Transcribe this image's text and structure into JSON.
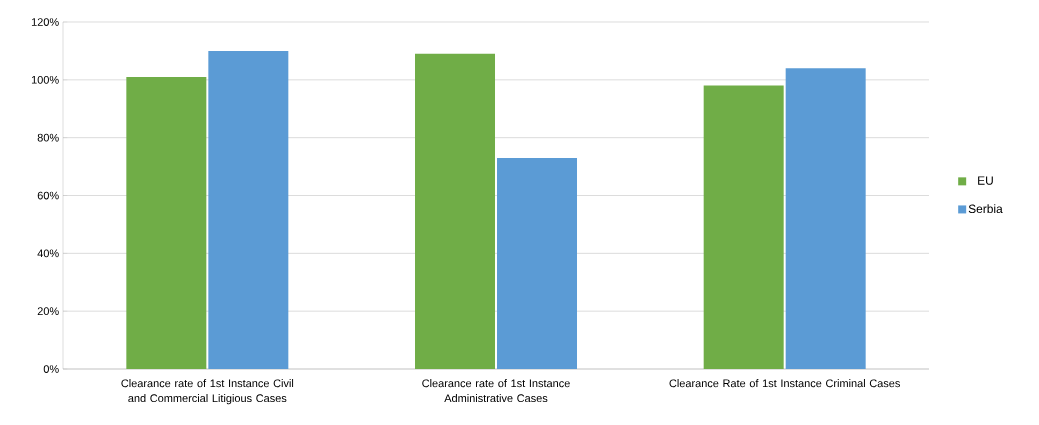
{
  "chart_data": {
    "type": "bar",
    "categories": [
      "Clearance rate of 1st Instance Civil and Commercial Litigious Cases",
      "Clearance rate of 1st Instance Administrative Cases",
      "Clearance Rate of 1st Instance Criminal Cases"
    ],
    "series": [
      {
        "name": "EU",
        "color": "#70ad47",
        "values": [
          101,
          109,
          98
        ]
      },
      {
        "name": "Serbia",
        "color": "#5b9bd5",
        "values": [
          110,
          73,
          104
        ]
      }
    ],
    "ylim": [
      0,
      120
    ],
    "yticks": [
      {
        "value": 0,
        "label": "0%"
      },
      {
        "value": 20,
        "label": "20%"
      },
      {
        "value": 40,
        "label": "40%"
      },
      {
        "value": 60,
        "label": "60%"
      },
      {
        "value": 80,
        "label": "80%"
      },
      {
        "value": 100,
        "label": "100%"
      },
      {
        "value": 120,
        "label": "120%"
      }
    ],
    "grid": "y",
    "legend": "right"
  }
}
